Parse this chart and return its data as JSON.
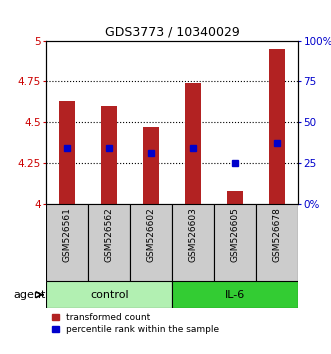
{
  "title": "GDS3773 / 10340029",
  "samples": [
    "GSM526561",
    "GSM526562",
    "GSM526602",
    "GSM526603",
    "GSM526605",
    "GSM526678"
  ],
  "groups": [
    "control",
    "control",
    "control",
    "IL-6",
    "IL-6",
    "IL-6"
  ],
  "red_values": [
    4.63,
    4.6,
    4.47,
    4.74,
    4.08,
    4.95
  ],
  "blue_values": [
    4.34,
    4.34,
    4.31,
    4.34,
    4.25,
    4.37
  ],
  "ylim": [
    4.0,
    5.0
  ],
  "yticks": [
    4.0,
    4.25,
    4.5,
    4.75,
    5.0
  ],
  "ytick_labels": [
    "4",
    "4.25",
    "4.5",
    "4.75",
    "5"
  ],
  "right_ytick_labels": [
    "0%",
    "25",
    "50",
    "75",
    "100%"
  ],
  "bar_color": "#b22222",
  "dot_color": "#0000cc",
  "control_color": "#b2f0b2",
  "il6_color": "#33cc33",
  "tick_label_color_left": "#cc0000",
  "tick_label_color_right": "#0000cc",
  "bar_width": 0.38,
  "background_color": "#ffffff",
  "gray_bg_color": "#cccccc"
}
